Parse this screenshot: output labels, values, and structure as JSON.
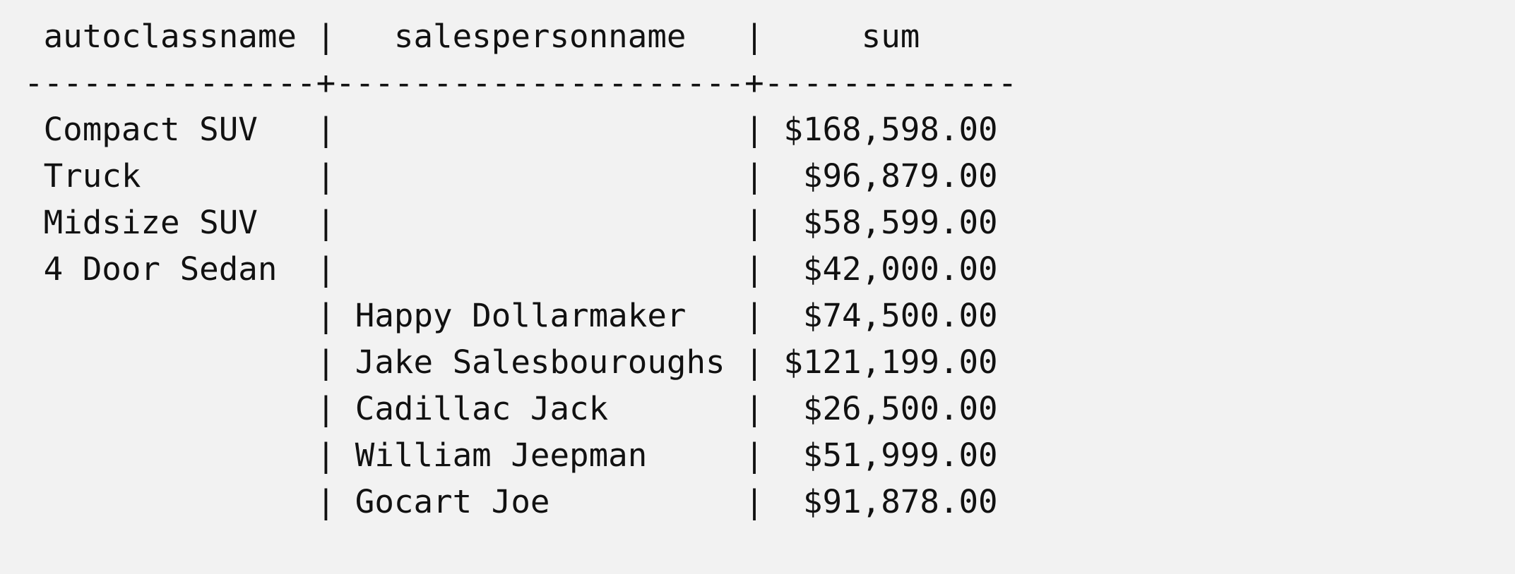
{
  "query_result": {
    "columns": [
      "autoclassname",
      "salespersonname",
      "sum"
    ],
    "rows": [
      {
        "autoclassname": "Compact SUV",
        "salespersonname": "",
        "sum": "$168,598.00"
      },
      {
        "autoclassname": "Truck",
        "salespersonname": "",
        "sum": "$96,879.00"
      },
      {
        "autoclassname": "Midsize SUV",
        "salespersonname": "",
        "sum": "$58,599.00"
      },
      {
        "autoclassname": "4 Door Sedan",
        "salespersonname": "",
        "sum": "$42,000.00"
      },
      {
        "autoclassname": "",
        "salespersonname": "Happy Dollarmaker",
        "sum": "$74,500.00"
      },
      {
        "autoclassname": "",
        "salespersonname": "Jake Salesbouroughs",
        "sum": "$121,199.00"
      },
      {
        "autoclassname": "",
        "salespersonname": "Cadillac Jack",
        "sum": "$26,500.00"
      },
      {
        "autoclassname": "",
        "salespersonname": "William Jeepman",
        "sum": "$51,999.00"
      },
      {
        "autoclassname": "",
        "salespersonname": "Gocart Joe",
        "sum": "$91,878.00"
      }
    ]
  }
}
